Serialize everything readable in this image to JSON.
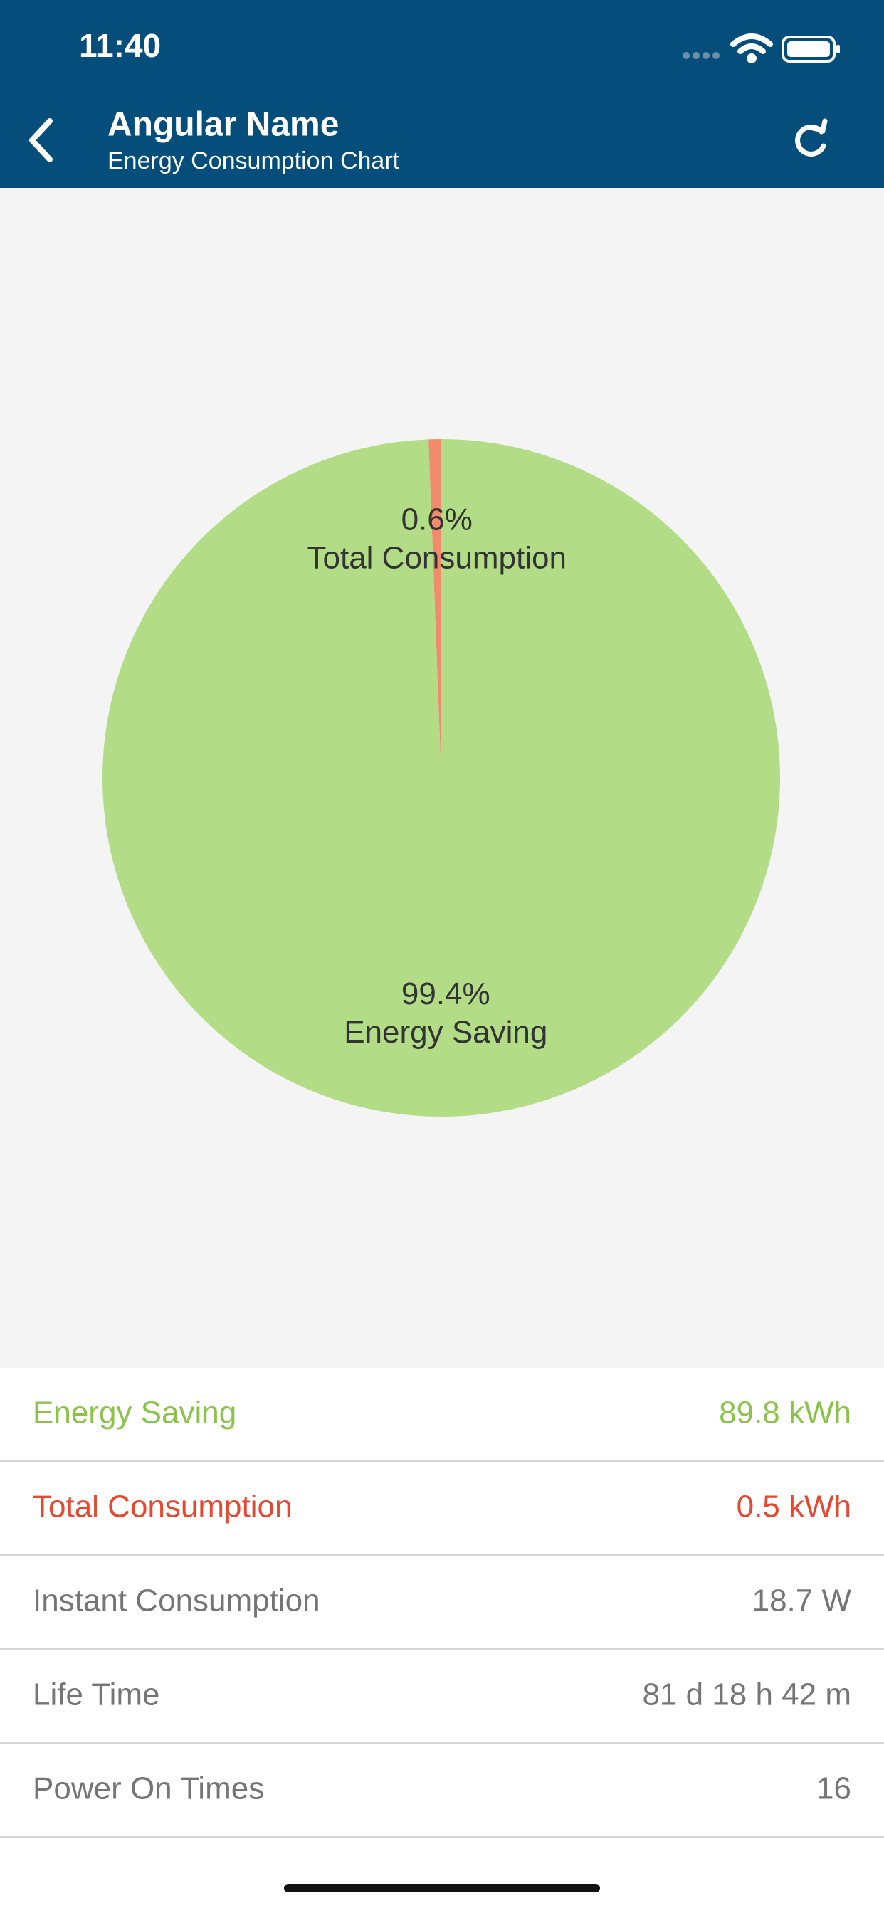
{
  "status_bar": {
    "time": "11:40"
  },
  "header": {
    "title": "Angular Name",
    "subtitle": "Energy Consumption Chart"
  },
  "chart_data": {
    "type": "pie",
    "categories": [
      "Total Consumption",
      "Energy Saving"
    ],
    "values": [
      0.6,
      99.4
    ],
    "value_labels": [
      "0.6%",
      "99.4%"
    ],
    "colors": [
      "#f28b6e",
      "#b3dc86"
    ]
  },
  "list": {
    "rows": [
      {
        "label": "Energy Saving",
        "value": "89.8 kWh"
      },
      {
        "label": "Total Consumption",
        "value": "0.5 kWh"
      },
      {
        "label": "Instant Consumption",
        "value": "18.7 W"
      },
      {
        "label": "Life Time",
        "value": "81 d 18 h 42 m"
      },
      {
        "label": "Power On Times",
        "value": "16"
      }
    ]
  }
}
